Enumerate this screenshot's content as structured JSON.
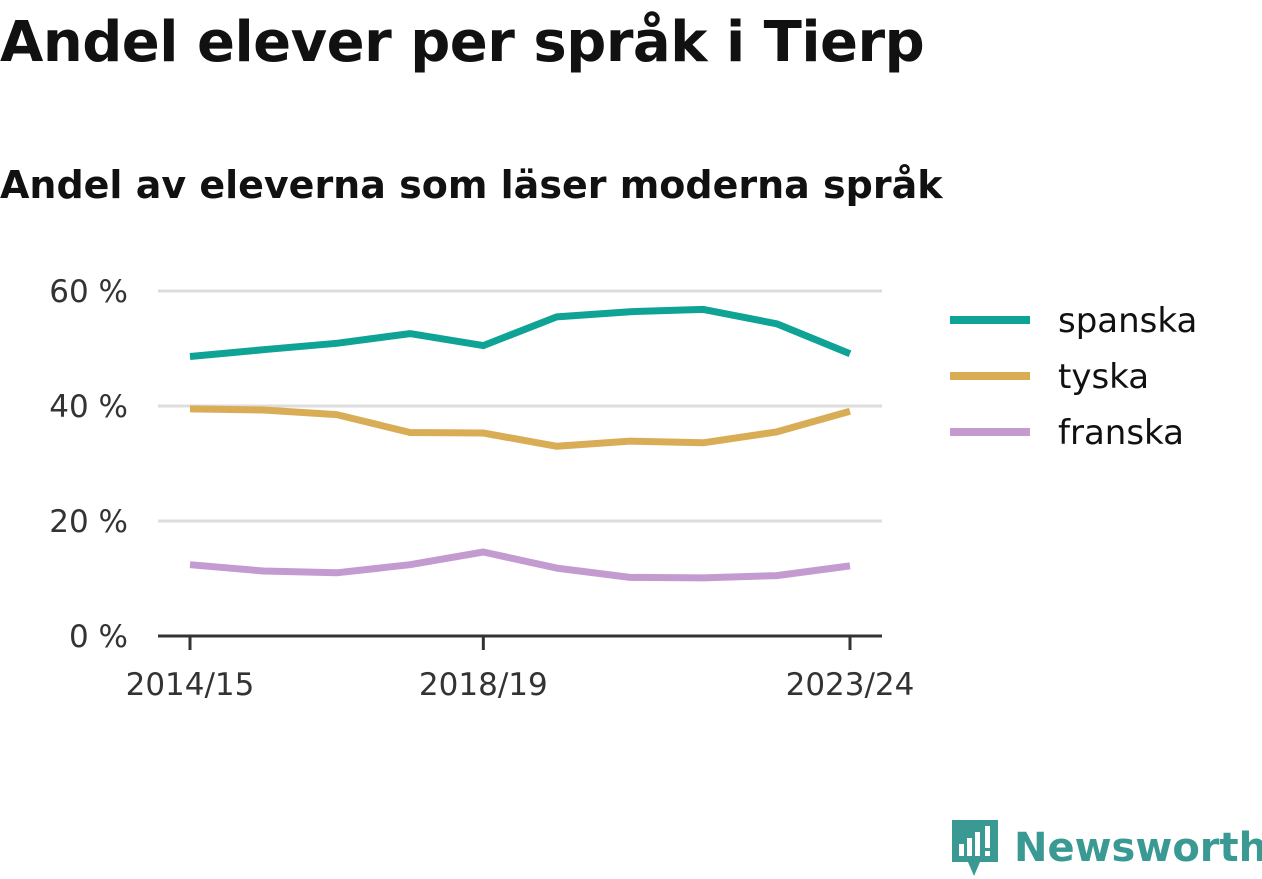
{
  "title": "Andel elever per språk i Tierp",
  "subtitle": "Andel av eleverna som läser moderna språk",
  "brand": {
    "name": "Newsworthy",
    "icon": "newsworthy-logo-icon",
    "color": "#3a9a93"
  },
  "chart_data": {
    "type": "line",
    "title": "Andel elever per språk i Tierp",
    "subtitle": "Andel av eleverna som läser moderna språk",
    "x": [
      "2014/15",
      "2015/16",
      "2016/17",
      "2017/18",
      "2018/19",
      "2019/20",
      "2020/21",
      "2021/22",
      "2022/23",
      "2023/24"
    ],
    "x_tick_labels": [
      "2014/15",
      "2018/19",
      "2023/24"
    ],
    "y_ticks": [
      0,
      20,
      40,
      60
    ],
    "y_tick_labels": [
      "0 %",
      "20 %",
      "40 %",
      "60 %"
    ],
    "ylim": [
      0,
      60
    ],
    "grid": true,
    "legend_position": "right",
    "series": [
      {
        "name": "spanska",
        "color": "#0fa396",
        "values": [
          48.6,
          49.8,
          50.9,
          52.6,
          50.5,
          55.5,
          56.4,
          56.8,
          54.3,
          49.1
        ]
      },
      {
        "name": "tyska",
        "color": "#d9ad56",
        "values": [
          39.5,
          39.3,
          38.5,
          35.4,
          35.3,
          33.0,
          33.9,
          33.6,
          35.5,
          39.1
        ]
      },
      {
        "name": "franska",
        "color": "#c39bd0",
        "values": [
          12.4,
          11.3,
          11.0,
          12.4,
          14.6,
          11.8,
          10.2,
          10.1,
          10.5,
          12.2
        ]
      }
    ]
  }
}
